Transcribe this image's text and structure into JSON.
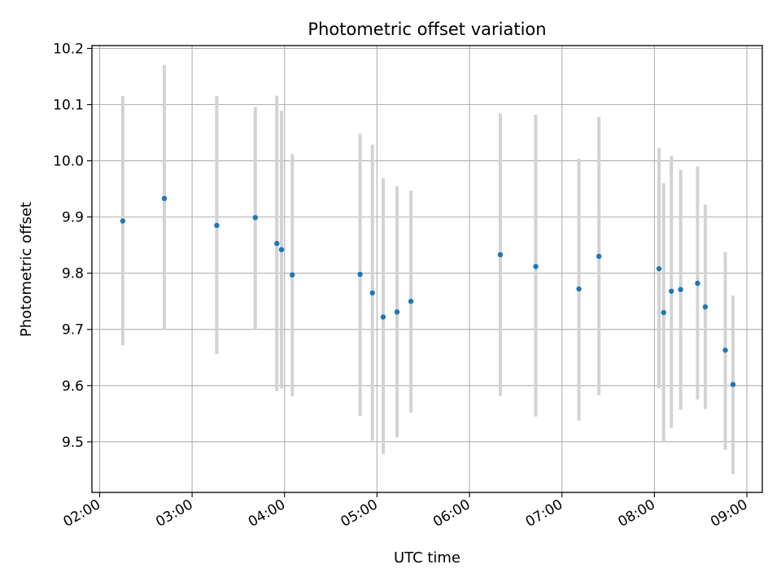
{
  "chart_data": {
    "type": "scatter",
    "title": "Photometric offset variation",
    "xlabel": "UTC time",
    "ylabel": "Photometric offset",
    "x_ticks": [
      "02:00",
      "03:00",
      "04:00",
      "05:00",
      "06:00",
      "07:00",
      "08:00",
      "09:00"
    ],
    "y_ticks": [
      "9.5",
      "9.6",
      "9.7",
      "9.8",
      "9.9",
      "10.0",
      "10.1",
      "10.2"
    ],
    "xlim": [
      "01:55",
      "09:10"
    ],
    "ylim": [
      9.41,
      10.205
    ],
    "grid": true,
    "colors": {
      "marker": "#1f77b4",
      "errorbar": "#d3d3d3",
      "grid": "#b0b0b0"
    },
    "points": [
      {
        "x": "02:15",
        "y": 9.893,
        "ylow": 9.672,
        "yhigh": 10.115
      },
      {
        "x": "02:42",
        "y": 9.933,
        "ylow": 9.7,
        "yhigh": 10.17
      },
      {
        "x": "03:16",
        "y": 9.885,
        "ylow": 9.656,
        "yhigh": 10.115
      },
      {
        "x": "03:41",
        "y": 9.899,
        "ylow": 9.7,
        "yhigh": 10.096
      },
      {
        "x": "03:55",
        "y": 9.853,
        "ylow": 9.59,
        "yhigh": 10.116
      },
      {
        "x": "03:58",
        "y": 9.842,
        "ylow": 9.595,
        "yhigh": 10.089
      },
      {
        "x": "04:05",
        "y": 9.797,
        "ylow": 9.581,
        "yhigh": 10.012
      },
      {
        "x": "04:49",
        "y": 9.798,
        "ylow": 9.546,
        "yhigh": 10.048
      },
      {
        "x": "04:57",
        "y": 9.765,
        "ylow": 9.502,
        "yhigh": 10.029
      },
      {
        "x": "05:04",
        "y": 9.722,
        "ylow": 9.478,
        "yhigh": 9.969
      },
      {
        "x": "05:13",
        "y": 9.731,
        "ylow": 9.508,
        "yhigh": 9.955
      },
      {
        "x": "05:22",
        "y": 9.75,
        "ylow": 9.552,
        "yhigh": 9.947
      },
      {
        "x": "06:20",
        "y": 9.833,
        "ylow": 9.582,
        "yhigh": 10.084
      },
      {
        "x": "06:43",
        "y": 9.812,
        "ylow": 9.545,
        "yhigh": 10.082
      },
      {
        "x": "07:11",
        "y": 9.772,
        "ylow": 9.538,
        "yhigh": 10.004
      },
      {
        "x": "07:24",
        "y": 9.83,
        "ylow": 9.583,
        "yhigh": 10.078
      },
      {
        "x": "08:03",
        "y": 9.808,
        "ylow": 9.595,
        "yhigh": 10.023
      },
      {
        "x": "08:06",
        "y": 9.73,
        "ylow": 9.5,
        "yhigh": 9.96
      },
      {
        "x": "08:11",
        "y": 9.768,
        "ylow": 9.525,
        "yhigh": 10.009
      },
      {
        "x": "08:17",
        "y": 9.771,
        "ylow": 9.557,
        "yhigh": 9.984
      },
      {
        "x": "08:28",
        "y": 9.782,
        "ylow": 9.575,
        "yhigh": 9.99
      },
      {
        "x": "08:33",
        "y": 9.74,
        "ylow": 9.558,
        "yhigh": 9.922
      },
      {
        "x": "08:46",
        "y": 9.663,
        "ylow": 9.486,
        "yhigh": 9.838
      },
      {
        "x": "08:51",
        "y": 9.602,
        "ylow": 9.443,
        "yhigh": 9.76
      }
    ]
  }
}
